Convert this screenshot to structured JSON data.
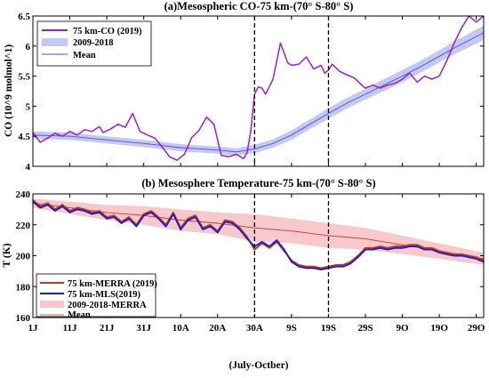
{
  "chart_data": [
    {
      "type": "line",
      "title": "(a)Mesospheric CO-75 km-(70° S-80° S)",
      "xlabel": "",
      "ylabel": "CO (10^9 molmol^1)",
      "ylim": [
        4,
        6.5
      ],
      "yticks": [
        "4",
        "4.5",
        "5",
        "5.5",
        "6",
        "6.5"
      ],
      "xlim": [
        1,
        123
      ],
      "x_start": "1 July",
      "grid": false,
      "legend_position": "top-left",
      "vlines": [
        61,
        81
      ],
      "series": [
        {
          "name": "75 km-CO (2019)",
          "color": "#9b1ed0",
          "x": [
            1,
            3,
            5,
            7,
            9,
            11,
            13,
            15,
            17,
            19,
            20,
            22,
            24,
            26,
            28,
            30,
            32,
            34,
            36,
            38,
            40,
            42,
            44,
            46,
            48,
            50,
            52,
            54,
            56,
            58,
            59,
            60,
            61,
            62,
            63,
            64,
            66,
            68,
            70,
            71,
            73,
            75,
            77,
            79,
            80,
            81,
            82,
            84,
            86,
            88,
            90,
            91,
            93,
            95,
            97,
            99,
            101,
            103,
            105,
            107,
            109,
            111,
            113,
            115,
            117,
            119,
            121,
            123
          ],
          "values": [
            4.56,
            4.4,
            4.47,
            4.55,
            4.5,
            4.58,
            4.52,
            4.61,
            4.58,
            4.66,
            4.56,
            4.62,
            4.7,
            4.65,
            4.88,
            4.58,
            4.52,
            4.47,
            4.32,
            4.16,
            4.1,
            4.2,
            4.48,
            4.6,
            4.82,
            4.7,
            4.18,
            4.16,
            4.2,
            4.13,
            4.23,
            4.6,
            5.2,
            5.32,
            5.3,
            5.2,
            5.45,
            6.05,
            5.72,
            5.68,
            5.7,
            5.82,
            5.62,
            5.68,
            5.55,
            5.6,
            5.7,
            5.58,
            5.52,
            5.47,
            5.35,
            5.3,
            5.35,
            5.3,
            5.35,
            5.38,
            5.45,
            5.55,
            5.4,
            5.5,
            5.45,
            5.5,
            5.75,
            6.05,
            6.3,
            6.5,
            6.4,
            6.5
          ]
        },
        {
          "name": "Mean",
          "color": "#4d52cf",
          "band_name": "2009-2018",
          "band_color": "#c5c8f2",
          "x": [
            1,
            11,
            21,
            31,
            41,
            51,
            56,
            61,
            66,
            71,
            76,
            81,
            86,
            91,
            96,
            101,
            106,
            111,
            116,
            123
          ],
          "values": [
            4.52,
            4.5,
            4.44,
            4.38,
            4.31,
            4.27,
            4.24,
            4.29,
            4.38,
            4.52,
            4.7,
            4.88,
            5.05,
            5.2,
            5.35,
            5.5,
            5.66,
            5.83,
            6.0,
            6.22
          ],
          "spread": [
            0.06,
            0.06,
            0.06,
            0.06,
            0.06,
            0.06,
            0.06,
            0.07,
            0.07,
            0.08,
            0.08,
            0.09,
            0.09,
            0.09,
            0.1,
            0.1,
            0.1,
            0.1,
            0.11,
            0.12
          ]
        }
      ]
    },
    {
      "type": "line",
      "title": "(b) Mesosphere Temperature-75 km-(70° S-80° S)",
      "xlabel": "(July-Octber)",
      "ylabel": "T (K)",
      "ylim": [
        160,
        240
      ],
      "yticks": [
        "160",
        "180",
        "200",
        "220",
        "240"
      ],
      "xlim": [
        1,
        123
      ],
      "x_start": "1 July",
      "categories": [
        "1J",
        "11J",
        "21J",
        "31J",
        "10A",
        "20A",
        "30A",
        "9S",
        "19S",
        "29S",
        "9O",
        "19O",
        "29O"
      ],
      "grid": false,
      "legend_position": "bottom-left",
      "vlines": [
        61,
        81
      ],
      "series": [
        {
          "name": "75 km-MERRA (2019)",
          "color": "#c0391b",
          "x": [
            1,
            3,
            5,
            7,
            9,
            11,
            13,
            15,
            17,
            19,
            21,
            23,
            25,
            27,
            29,
            31,
            33,
            35,
            37,
            39,
            41,
            43,
            45,
            47,
            49,
            51,
            53,
            55,
            57,
            59,
            61,
            63,
            65,
            67,
            69,
            71,
            73,
            75,
            77,
            79,
            81,
            83,
            85,
            87,
            89,
            91,
            93,
            95,
            97,
            99,
            101,
            103,
            105,
            107,
            109,
            111,
            113,
            115,
            117,
            119,
            121,
            123
          ],
          "values": [
            236,
            232,
            234,
            230,
            233,
            229,
            231,
            230,
            228,
            229,
            225,
            226,
            222,
            225,
            220,
            227,
            229,
            225,
            220,
            228,
            218,
            224,
            226,
            218,
            220,
            216,
            223,
            222,
            218,
            212,
            204,
            208,
            205,
            209,
            203,
            197,
            194,
            193,
            193,
            192,
            193,
            194,
            194,
            196,
            200,
            205,
            205,
            206,
            205,
            206,
            206,
            207,
            207,
            205,
            205,
            203,
            202,
            201,
            201,
            200,
            199,
            197
          ]
        },
        {
          "name": "75 km-MLS(2019)",
          "color": "#1f1fbf",
          "x": [
            1,
            3,
            5,
            7,
            9,
            11,
            13,
            15,
            17,
            19,
            21,
            23,
            25,
            27,
            29,
            31,
            33,
            35,
            37,
            39,
            41,
            43,
            45,
            47,
            49,
            51,
            53,
            55,
            57,
            59,
            61,
            63,
            65,
            67,
            69,
            71,
            73,
            75,
            77,
            79,
            81,
            83,
            85,
            87,
            89,
            91,
            93,
            95,
            97,
            99,
            101,
            103,
            105,
            107,
            109,
            111,
            113,
            115,
            117,
            119,
            121,
            123
          ],
          "values": [
            235,
            231,
            233,
            229,
            232,
            228,
            230,
            229,
            227,
            228,
            224,
            225,
            221,
            224,
            219,
            226,
            228,
            224,
            219,
            227,
            217,
            223,
            225,
            217,
            219,
            215,
            222,
            221,
            217,
            211,
            206,
            209,
            206,
            210,
            204,
            196,
            193,
            192,
            192,
            191,
            192,
            193,
            193,
            195,
            199,
            204,
            204,
            205,
            204,
            205,
            205,
            206,
            206,
            204,
            204,
            202,
            201,
            200,
            200,
            199,
            198,
            196
          ]
        },
        {
          "name": "Mean",
          "color": "#c0392b",
          "band_name": "2009-2018-MERRA",
          "band_color": "#f7c9cd",
          "x": [
            1,
            11,
            21,
            31,
            41,
            51,
            61,
            71,
            81,
            91,
            101,
            111,
            123
          ],
          "values": [
            234,
            231,
            228,
            226,
            223,
            221,
            218,
            216,
            213,
            211,
            207,
            203,
            198
          ],
          "spread": [
            3,
            4,
            5,
            6,
            7,
            7,
            9,
            8,
            8,
            7,
            6,
            5,
            4
          ]
        }
      ]
    }
  ]
}
